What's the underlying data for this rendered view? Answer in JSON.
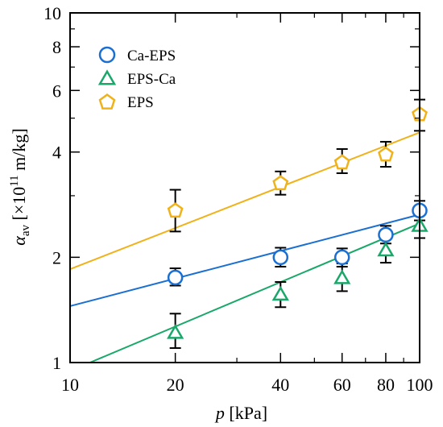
{
  "chart_data": {
    "type": "scatter",
    "x_scale": "log",
    "y_scale": "log",
    "xlim": [
      10,
      100
    ],
    "ylim": [
      1,
      10
    ],
    "x_ticks": [
      10,
      20,
      40,
      60,
      80,
      100
    ],
    "y_ticks": [
      1,
      2,
      4,
      6,
      8,
      10
    ],
    "x_tick_labels": [
      "10",
      "20",
      "40",
      "60",
      "80",
      "100"
    ],
    "y_tick_labels": [
      "1",
      "2",
      "4",
      "6",
      "8",
      "10"
    ],
    "xlabel": {
      "symbol": "p",
      "unit": " [kPa]"
    },
    "ylabel": {
      "symbol": "α",
      "subscript": "av",
      "unit_start": " [×10",
      "exponent": "11",
      "unit_end": " m/kg]"
    },
    "grid": false,
    "legend_position": "top-left",
    "series": [
      {
        "name": "Ca-EPS",
        "marker": "circle",
        "color": "#1a6fd0",
        "points": [
          {
            "x": 20,
            "y": 1.75,
            "err_low": 1.66,
            "err_high": 1.86
          },
          {
            "x": 40,
            "y": 2.0,
            "err_low": 1.88,
            "err_high": 2.13
          },
          {
            "x": 60,
            "y": 2.0,
            "err_low": 1.88,
            "err_high": 2.12
          },
          {
            "x": 80,
            "y": 2.32,
            "err_low": 2.19,
            "err_high": 2.46
          },
          {
            "x": 100,
            "y": 2.72,
            "err_low": 2.55,
            "err_high": 2.9
          }
        ],
        "fit": {
          "x": [
            10,
            100
          ],
          "y": [
            1.45,
            2.65
          ]
        }
      },
      {
        "name": "EPS-Ca",
        "marker": "triangle",
        "color": "#1aa86a",
        "points": [
          {
            "x": 20,
            "y": 1.22,
            "err_low": 1.1,
            "err_high": 1.38
          },
          {
            "x": 40,
            "y": 1.57,
            "err_low": 1.44,
            "err_high": 1.7
          },
          {
            "x": 60,
            "y": 1.75,
            "err_low": 1.6,
            "err_high": 1.92
          },
          {
            "x": 80,
            "y": 2.1,
            "err_low": 1.93,
            "err_high": 2.28
          },
          {
            "x": 100,
            "y": 2.47,
            "err_low": 2.27,
            "err_high": 2.7
          }
        ],
        "fit": {
          "x": [
            11.4,
            100
          ],
          "y": [
            1.0,
            2.5
          ]
        }
      },
      {
        "name": "EPS",
        "marker": "pentagon",
        "color": "#f0b21a",
        "points": [
          {
            "x": 20,
            "y": 2.73,
            "err_low": 2.37,
            "err_high": 3.12
          },
          {
            "x": 40,
            "y": 3.27,
            "err_low": 3.02,
            "err_high": 3.52
          },
          {
            "x": 60,
            "y": 3.75,
            "err_low": 3.48,
            "err_high": 4.08
          },
          {
            "x": 80,
            "y": 3.95,
            "err_low": 3.63,
            "err_high": 4.28
          },
          {
            "x": 100,
            "y": 5.15,
            "err_low": 4.6,
            "err_high": 5.65
          }
        ],
        "fit": {
          "x": [
            10,
            100
          ],
          "y": [
            1.85,
            4.55
          ]
        }
      }
    ]
  }
}
